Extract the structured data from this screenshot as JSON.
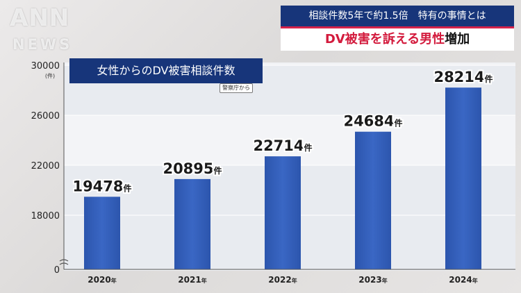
{
  "logo": {
    "top": "ANN",
    "bottom": "NEWS"
  },
  "headline": {
    "top": "相談件数5年で約1.5倍　特有の事情とは",
    "main_red": "DV被害を訴える男性",
    "main_black": "増加"
  },
  "colors": {
    "bar": "#3a67c4",
    "title_bg": "#17357a",
    "accent": "#d31b3d"
  },
  "chart_data": {
    "type": "bar",
    "title": "女性からのDV被害相談件数",
    "source_note": "警察庁から",
    "y_unit": "(件)",
    "categories": [
      "2020",
      "2021",
      "2022",
      "2023",
      "2024"
    ],
    "category_suffix": "年",
    "values": [
      19478,
      20895,
      22714,
      24684,
      28214
    ],
    "value_suffix": "件",
    "y_ticks": [
      30000,
      26000,
      22000,
      18000,
      0
    ],
    "axis_break": true,
    "ylim": [
      16000,
      30000
    ],
    "grid": true,
    "legend": "none"
  }
}
